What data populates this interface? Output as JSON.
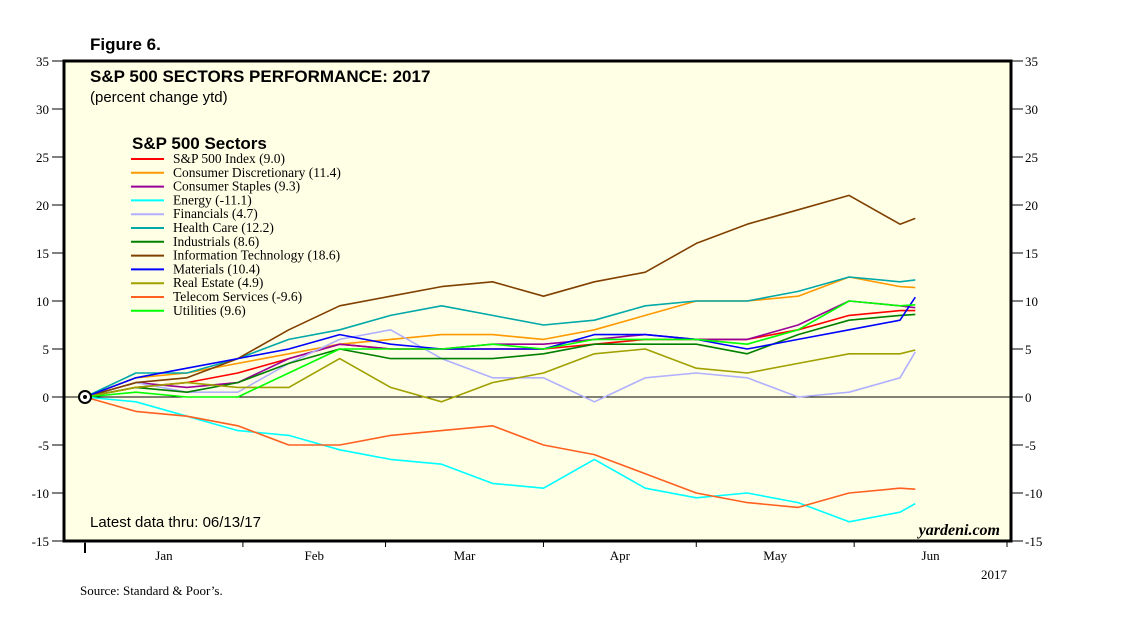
{
  "figure_label": "Figure 6.",
  "source": "Source: Standard & Poor’s.",
  "chart_data": {
    "type": "line",
    "title": "S&P 500 SECTORS PERFORMANCE: 2017",
    "subtitle": "(percent change ytd)",
    "legend_title": "S&P 500 Sectors",
    "legend_placement": "top-left",
    "annotation_latest": "Latest data thru: 06/13/17",
    "watermark": "yardeni.com",
    "ylim": [
      -15,
      35
    ],
    "yticks": [
      35,
      30,
      25,
      20,
      15,
      10,
      5,
      0,
      -5,
      -10,
      -15
    ],
    "x_unit": "day of year 2017",
    "xlim": [
      0,
      181
    ],
    "xtick_labels": [
      "Jan",
      "Feb",
      "Mar",
      "Apr",
      "May",
      "Jun"
    ],
    "year_label": "2017",
    "x": [
      0,
      10,
      20,
      30,
      40,
      50,
      60,
      70,
      80,
      90,
      100,
      110,
      120,
      130,
      140,
      150,
      160,
      163
    ],
    "series": [
      {
        "name": "S&P 500 Index (9.0)",
        "color": "#ff0000",
        "values": [
          0,
          1,
          1.5,
          2.5,
          4,
          5.5,
          5,
          5,
          5,
          5,
          5.5,
          6,
          6,
          6,
          7,
          8.5,
          9,
          9.0
        ]
      },
      {
        "name": "Consumer Discretionary (11.4)",
        "color": "#ff9900",
        "values": [
          0,
          2,
          2.5,
          3.5,
          4.5,
          5.5,
          6,
          6.5,
          6.5,
          6,
          7,
          8.5,
          10,
          10,
          10.5,
          12.5,
          11.5,
          11.4
        ]
      },
      {
        "name": "Consumer Staples (9.3)",
        "color": "#990099",
        "values": [
          0,
          1.5,
          1,
          1.5,
          4,
          5.5,
          5,
          5,
          5.5,
          5.5,
          6,
          6.5,
          6,
          6,
          7.5,
          10,
          9.5,
          9.3
        ]
      },
      {
        "name": "Energy (-11.1)",
        "color": "#00ffff",
        "values": [
          0,
          -0.5,
          -2,
          -3.5,
          -4,
          -5.5,
          -6.5,
          -7,
          -9,
          -9.5,
          -6.5,
          -9.5,
          -10.5,
          -10,
          -11,
          -13,
          -12,
          -11.1
        ]
      },
      {
        "name": "Financials (4.7)",
        "color": "#b0b0ff",
        "values": [
          0,
          1.5,
          0.5,
          0.5,
          3.5,
          6,
          7,
          4,
          2,
          2,
          -0.5,
          2,
          2.5,
          2,
          0,
          0.5,
          2,
          4.7
        ]
      },
      {
        "name": "Health Care (12.2)",
        "color": "#00a8a8",
        "values": [
          0,
          2.5,
          2.5,
          4,
          6,
          7,
          8.5,
          9.5,
          8.5,
          7.5,
          8,
          9.5,
          10,
          10,
          11,
          12.5,
          12,
          12.2
        ]
      },
      {
        "name": "Industrials (8.6)",
        "color": "#008000",
        "values": [
          0,
          1,
          0.5,
          1.5,
          3.5,
          5,
          4,
          4,
          4,
          4.5,
          5.5,
          5.5,
          5.5,
          4.5,
          6.5,
          8,
          8.5,
          8.6
        ]
      },
      {
        "name": "Information Technology (18.6)",
        "color": "#804000",
        "values": [
          0,
          1.5,
          2,
          4,
          7,
          9.5,
          10.5,
          11.5,
          12,
          10.5,
          12,
          13,
          16,
          18,
          19.5,
          21,
          18,
          18.6
        ]
      },
      {
        "name": "Materials (10.4)",
        "color": "#0000ff",
        "values": [
          0,
          2,
          3,
          4,
          5,
          6.5,
          5.5,
          5,
          5,
          5,
          6.5,
          6.5,
          6,
          5,
          6,
          7,
          8,
          10.4
        ]
      },
      {
        "name": "Real Estate (4.9)",
        "color": "#a0a000",
        "values": [
          0,
          1,
          1.5,
          1,
          1,
          4,
          1,
          -0.5,
          1.5,
          2.5,
          4.5,
          5,
          3,
          2.5,
          3.5,
          4.5,
          4.5,
          4.9
        ]
      },
      {
        "name": "Telecom Services (-9.6)",
        "color": "#ff6020",
        "values": [
          0,
          -1.5,
          -2,
          -3,
          -5,
          -5,
          -4,
          -3.5,
          -3,
          -5,
          -6,
          -8,
          -10,
          -11,
          -11.5,
          -10,
          -9.5,
          -9.6
        ]
      },
      {
        "name": "Utilities (9.6)",
        "color": "#00ff00",
        "values": [
          0,
          0.5,
          0,
          0,
          2.5,
          5,
          5,
          5,
          5.5,
          5,
          6,
          6,
          6,
          5.5,
          7,
          10,
          9.5,
          9.6
        ]
      }
    ],
    "grid": false
  }
}
